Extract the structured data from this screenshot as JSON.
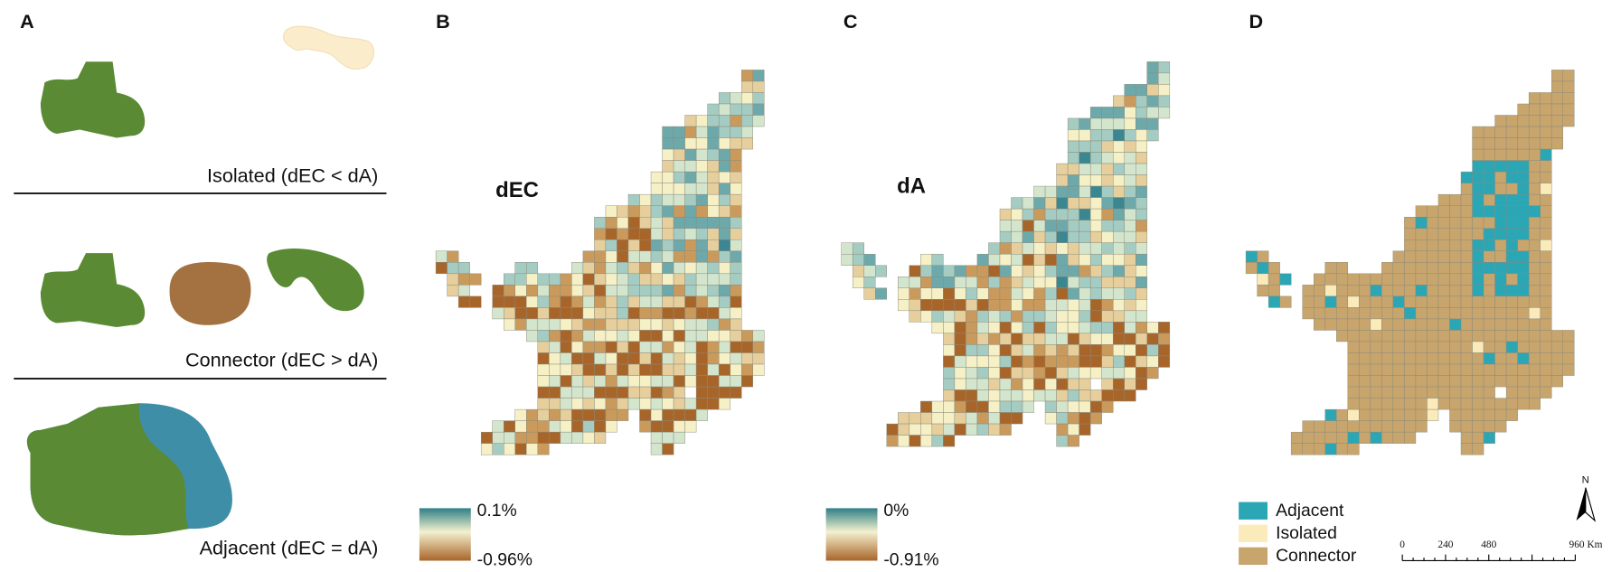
{
  "panels": [
    "A",
    "B",
    "C",
    "D"
  ],
  "panel_a": {
    "captions": [
      "Isolated (dEC < dA)",
      "Connector (dEC > dA)",
      "Adjacent (dEC = dA)"
    ]
  },
  "panel_b": {
    "label": "dEC",
    "legend": {
      "max": "0.1%",
      "min": "-0.96%"
    }
  },
  "panel_c": {
    "label": "dA",
    "legend": {
      "max": "0%",
      "min": "-0.91%"
    }
  },
  "panel_d": {
    "legend": [
      "Adjacent",
      "Isolated",
      "Connector"
    ],
    "north": "N",
    "scale_bar": [
      "0",
      "240",
      "480",
      "960 Km"
    ]
  }
}
